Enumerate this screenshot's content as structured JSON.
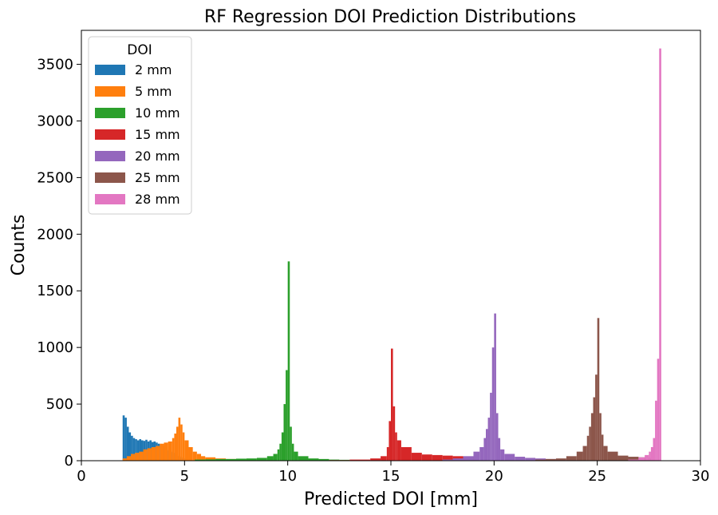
{
  "chart_data": {
    "type": "bar",
    "title": "RF Regression DOI Prediction Distributions",
    "xlabel": "Predicted DOI [mm]",
    "ylabel": "Counts",
    "xlim": [
      0,
      30
    ],
    "ylim": [
      0,
      3800
    ],
    "xticks": [
      0,
      5,
      10,
      15,
      20,
      25,
      30
    ],
    "yticks": [
      0,
      500,
      1000,
      1500,
      2000,
      2500,
      3000,
      3500
    ],
    "grid": false,
    "legend": {
      "title": "DOI",
      "position": "top-left"
    },
    "bin_width": 0.1,
    "series": [
      {
        "name": "2 mm",
        "color": "#1f77b4",
        "x": [
          2.0,
          2.1,
          2.2,
          2.3,
          2.4,
          2.5,
          2.6,
          2.7,
          2.8,
          2.9,
          3.0,
          3.1,
          3.2,
          3.3,
          3.4,
          3.5,
          3.6,
          3.7,
          3.8,
          3.9,
          4.0,
          4.1,
          4.2,
          4.3,
          4.4,
          4.5,
          4.6,
          4.7,
          4.8,
          4.9,
          5.0
        ],
        "y": [
          400,
          380,
          300,
          250,
          220,
          200,
          190,
          180,
          190,
          180,
          175,
          185,
          170,
          180,
          165,
          170,
          160,
          150,
          140,
          130,
          120,
          100,
          90,
          80,
          70,
          60,
          50,
          40,
          30,
          20,
          10
        ]
      },
      {
        "name": "5 mm",
        "color": "#ff7f0e",
        "x": [
          2.0,
          2.2,
          2.4,
          2.6,
          2.8,
          3.0,
          3.2,
          3.4,
          3.6,
          3.8,
          4.0,
          4.2,
          4.4,
          4.5,
          4.6,
          4.7,
          4.8,
          4.9,
          5.0,
          5.2,
          5.4,
          5.6,
          5.8,
          6.0,
          6.5,
          7.0,
          7.5,
          8.0,
          8.5,
          9.0
        ],
        "y": [
          20,
          40,
          60,
          70,
          80,
          100,
          110,
          120,
          130,
          150,
          160,
          170,
          200,
          240,
          300,
          380,
          320,
          250,
          180,
          120,
          80,
          60,
          40,
          30,
          20,
          15,
          12,
          10,
          8,
          5
        ]
      },
      {
        "name": "10 mm",
        "color": "#2ca02c",
        "x": [
          5.5,
          6.0,
          6.5,
          7.0,
          7.5,
          8.0,
          8.5,
          9.0,
          9.3,
          9.5,
          9.6,
          9.7,
          9.8,
          9.9,
          10.0,
          10.1,
          10.2,
          10.3,
          10.5,
          11.0,
          11.5,
          12.0,
          12.5,
          13.0
        ],
        "y": [
          10,
          12,
          15,
          15,
          18,
          20,
          25,
          40,
          60,
          100,
          150,
          250,
          500,
          800,
          1760,
          300,
          150,
          80,
          40,
          20,
          15,
          10,
          8,
          5
        ]
      },
      {
        "name": "15 mm",
        "color": "#d62728",
        "x": [
          12.0,
          13.0,
          14.0,
          14.5,
          14.8,
          14.9,
          15.0,
          15.1,
          15.2,
          15.3,
          15.5,
          16.0,
          16.5,
          17.0,
          17.5,
          18.0,
          18.5,
          19.0
        ],
        "y": [
          5,
          10,
          20,
          40,
          120,
          350,
          990,
          480,
          250,
          180,
          120,
          70,
          55,
          50,
          45,
          40,
          35,
          30
        ]
      },
      {
        "name": "20 mm",
        "color": "#9467bd",
        "x": [
          17.5,
          18.0,
          18.5,
          19.0,
          19.3,
          19.5,
          19.6,
          19.7,
          19.8,
          19.9,
          20.0,
          20.1,
          20.2,
          20.3,
          20.5,
          21.0,
          21.5,
          22.0,
          22.5,
          23.0
        ],
        "y": [
          10,
          20,
          40,
          80,
          120,
          200,
          280,
          380,
          600,
          1000,
          1300,
          420,
          200,
          100,
          60,
          35,
          25,
          20,
          15,
          10
        ]
      },
      {
        "name": "25 mm",
        "color": "#8c564b",
        "x": [
          22.0,
          22.5,
          23.0,
          23.5,
          24.0,
          24.3,
          24.5,
          24.6,
          24.7,
          24.8,
          24.9,
          25.0,
          25.1,
          25.2,
          25.3,
          25.5,
          26.0,
          26.5,
          27.0,
          27.5
        ],
        "y": [
          10,
          15,
          20,
          40,
          80,
          130,
          220,
          300,
          420,
          560,
          760,
          1260,
          420,
          230,
          130,
          80,
          45,
          35,
          30,
          25
        ]
      },
      {
        "name": "28 mm",
        "color": "#e377c2",
        "x": [
          26.5,
          27.0,
          27.3,
          27.5,
          27.6,
          27.7,
          27.8,
          27.9,
          28.0
        ],
        "y": [
          10,
          30,
          50,
          80,
          120,
          200,
          530,
          900,
          3640
        ]
      }
    ]
  }
}
